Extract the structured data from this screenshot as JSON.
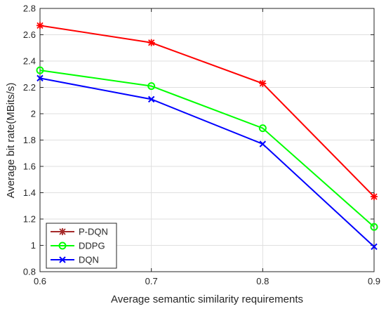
{
  "chart_data": {
    "type": "line",
    "title": "",
    "xlabel": "Average semantic similarity requirements",
    "ylabel": "Average bit rate(MBits/s)",
    "x": [
      0.6,
      0.7,
      0.8,
      0.9
    ],
    "xlim": [
      0.6,
      0.9
    ],
    "ylim": [
      0.8,
      2.8
    ],
    "xticks": [
      "0.6",
      "0.7",
      "0.8",
      "0.9"
    ],
    "yticks": [
      "0.8",
      "1",
      "1.2",
      "1.4",
      "1.6",
      "1.8",
      "2",
      "2.2",
      "2.4",
      "2.6",
      "2.8"
    ],
    "grid": true,
    "legend_position": "bottom-left",
    "series": [
      {
        "name": "P-DQN",
        "values": [
          2.67,
          2.54,
          2.23,
          1.37
        ],
        "color": "#ff0000",
        "marker": "star"
      },
      {
        "name": "DDPG",
        "values": [
          2.33,
          2.21,
          1.89,
          1.14
        ],
        "color": "#00ff00",
        "marker": "circle"
      },
      {
        "name": "DQN",
        "values": [
          2.27,
          2.11,
          1.77,
          0.99
        ],
        "color": "#0000ff",
        "marker": "x"
      }
    ]
  }
}
